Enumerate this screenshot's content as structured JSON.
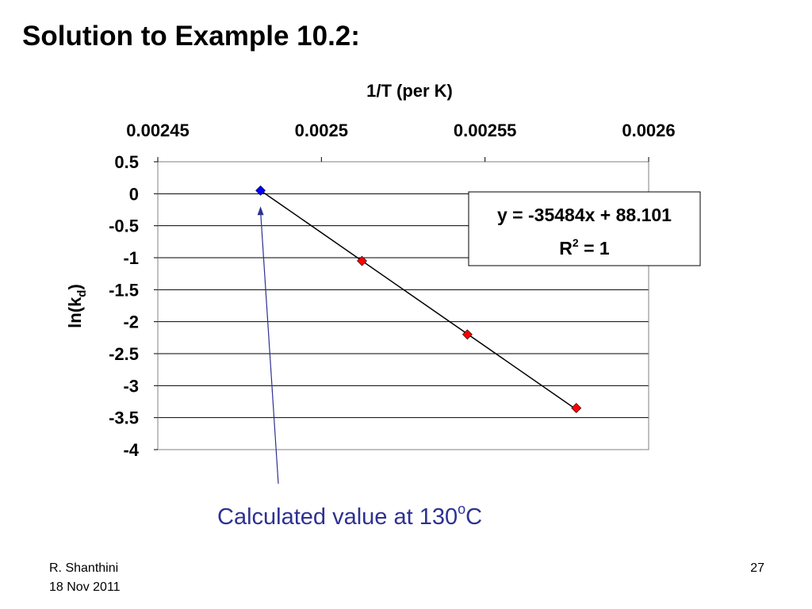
{
  "slide": {
    "title": "Solution to Example 10.2:",
    "author": "R. Shanthini",
    "date": "18 Nov 2011",
    "page_number": "27"
  },
  "annotation": {
    "text": "Calculated value at 130",
    "superscript": "o",
    "suffix": "C",
    "color": "#2e3192"
  },
  "chart_data": {
    "type": "scatter",
    "title": "",
    "xlabel": "1/T (per K)",
    "ylabel_main": "ln(k",
    "ylabel_sub": "d",
    "ylabel_close": ")",
    "x_axis_position": "top",
    "xlim": [
      0.00245,
      0.0026
    ],
    "ylim": [
      -4,
      0.5
    ],
    "x_ticks": [
      0.00245,
      0.0025,
      0.00255,
      0.0026
    ],
    "x_tick_labels": [
      "0.00245",
      "0.0025",
      "0.00255",
      "0.0026"
    ],
    "y_ticks": [
      0.5,
      0,
      -0.5,
      -1,
      -1.5,
      -2,
      -2.5,
      -3,
      -3.5,
      -4
    ],
    "y_tick_labels": [
      "0.5",
      "0",
      "-0.5",
      "-1",
      "-1.5",
      "-2",
      "-2.5",
      "-3",
      "-3.5",
      "-4"
    ],
    "grid": true,
    "series": [
      {
        "marker": "diamond",
        "color": "#ff0000",
        "points": [
          {
            "x": 0.0025124,
            "y": -1.05
          },
          {
            "x": 0.0025446,
            "y": -2.2
          },
          {
            "x": 0.0025779,
            "y": -3.35
          }
        ]
      },
      {
        "marker": "diamond",
        "color": "#0000ff",
        "points": [
          {
            "x": 0.0024814,
            "y": 0.05
          }
        ]
      }
    ],
    "trendline": {
      "equation": "y = -35484x + 88.101",
      "r_squared_prefix": "R",
      "r_squared_sup": "2",
      "r_squared_suffix": " = 1",
      "slope": -35484,
      "intercept": 88.101,
      "x_range": [
        0.0024814,
        0.0025779
      ],
      "color": "#000000"
    },
    "arrow_color": "#2e3192"
  }
}
